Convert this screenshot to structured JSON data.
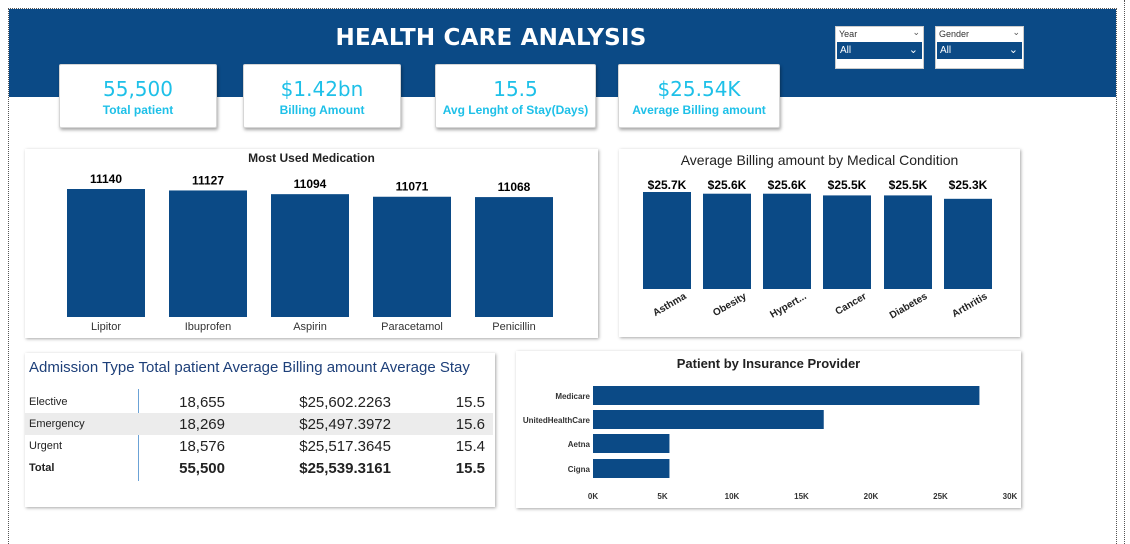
{
  "header": {
    "title": "HEALTH CARE ANALYSIS"
  },
  "filters": {
    "year": {
      "label": "Year",
      "value": "All"
    },
    "gender": {
      "label": "Gender",
      "value": "All"
    }
  },
  "kpis": [
    {
      "value": "55,500",
      "label": "Total patient"
    },
    {
      "value": "$1.42bn",
      "label": "Billing Amount"
    },
    {
      "value": "15.5",
      "label": "Avg Lenght of Stay(Days)"
    },
    {
      "value": "$25.54K",
      "label": "Average Billing amount"
    }
  ],
  "colors": {
    "bar": "#0b4a86",
    "kpi_text": "#1ec0e8",
    "banner": "#0b4a86"
  },
  "chart_data": [
    {
      "type": "bar",
      "title": "Most Used Medication",
      "categories": [
        "Lipitor",
        "Ibuprofen",
        "Aspirin",
        "Paracetamol",
        "Penicillin"
      ],
      "values": [
        11140,
        11127,
        11094,
        11071,
        11068
      ],
      "data_labels": [
        "11140",
        "11127",
        "11094",
        "11071",
        "11068"
      ]
    },
    {
      "type": "bar",
      "title": "Average Billing amount by Medical Condition",
      "categories": [
        "Asthma",
        "Obesity",
        "Hypert...",
        "Cancer",
        "Diabetes",
        "Arthritis"
      ],
      "values": [
        25700,
        25600,
        25600,
        25500,
        25500,
        25300
      ],
      "data_labels": [
        "$25.7K",
        "$25.6K",
        "$25.6K",
        "$25.5K",
        "$25.5K",
        "$25.3K"
      ]
    },
    {
      "type": "bar",
      "orientation": "horizontal",
      "title": "Patient by Insurance Provider",
      "categories": [
        "Medicare",
        "UnitedHealthCare",
        "Aetna",
        "Cigna"
      ],
      "values": [
        27800,
        16600,
        5500,
        5500
      ],
      "xlim": [
        0,
        30000
      ],
      "xticks": [
        "0K",
        "5K",
        "10K",
        "15K",
        "20K",
        "25K",
        "30K"
      ]
    },
    {
      "type": "table",
      "columns": [
        "Admission Type",
        "Total patient",
        "Average Billing amount",
        "Average Stay"
      ],
      "rows": [
        [
          "Elective",
          "18,655",
          "$25,602.2263",
          "15.5"
        ],
        [
          "Emergency",
          "18,269",
          "$25,497.3972",
          "15.6"
        ],
        [
          "Urgent",
          "18,576",
          "$25,517.3645",
          "15.4"
        ]
      ],
      "total": [
        "Total",
        "55,500",
        "$25,539.3161",
        "15.5"
      ]
    }
  ]
}
